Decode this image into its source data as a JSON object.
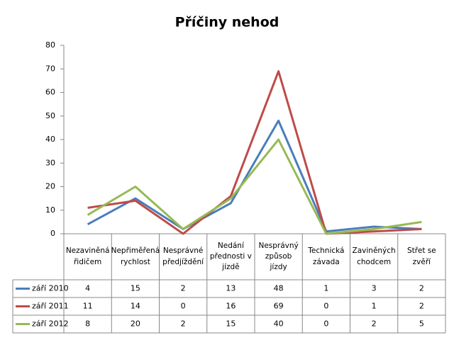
{
  "chart_data": {
    "type": "line",
    "title": "Příčiny nehod",
    "categories": [
      "Nezaviněná řidičem",
      "Nepřiměřená rychlost",
      "Nesprávné předjíždění",
      "Nedání přednosti v jízdě",
      "Nesprávný způsob jízdy",
      "Technická závada",
      "Zaviněných chodcem",
      "Střet se zvěří"
    ],
    "series": [
      {
        "name": "září 2010",
        "color": "#4a7ebb",
        "values": [
          4,
          15,
          2,
          13,
          48,
          1,
          3,
          2
        ]
      },
      {
        "name": "září 2011",
        "color": "#be4b48",
        "values": [
          11,
          14,
          0,
          16,
          69,
          0,
          1,
          2
        ]
      },
      {
        "name": "září 2012",
        "color": "#98b954",
        "values": [
          8,
          20,
          2,
          15,
          40,
          0,
          2,
          5
        ]
      }
    ],
    "ylim": [
      0,
      80
    ],
    "yticks": [
      0,
      10,
      20,
      30,
      40,
      50,
      60,
      70,
      80
    ],
    "grid": false
  }
}
